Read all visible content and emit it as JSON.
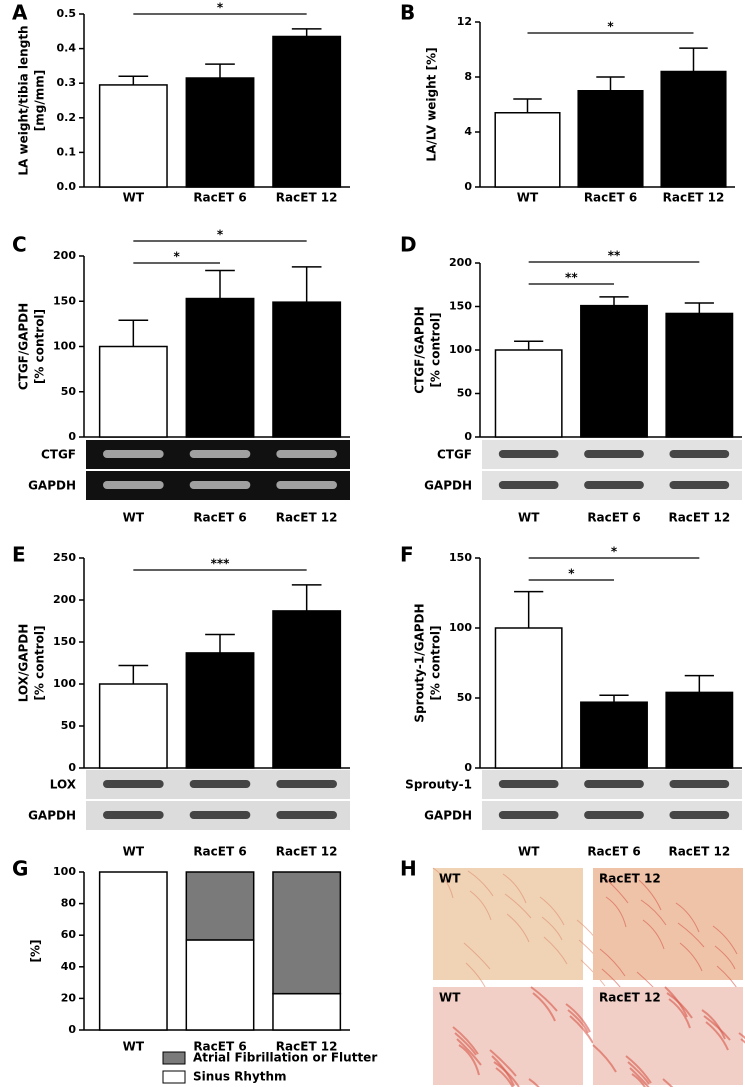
{
  "chart_data": [
    {
      "type": "bar",
      "label": "A",
      "ylabel": [
        "LA weight/tibia length",
        "[mg/mm]"
      ],
      "categories": [
        "WT",
        "RacET 6",
        "RacET 12"
      ],
      "values": [
        0.295,
        0.315,
        0.435
      ],
      "errors": [
        0.025,
        0.04,
        0.022
      ],
      "colors": [
        "#ffffff",
        "#000000",
        "#000000"
      ],
      "ylim": [
        0,
        0.5
      ],
      "yticks": [
        {
          "value": 0,
          "label": "0.0"
        },
        0.1,
        0.2,
        0.3,
        0.4,
        0.5
      ],
      "significance": [
        {
          "pair": [
            0,
            2
          ],
          "label": "*"
        }
      ]
    },
    {
      "type": "bar",
      "label": "B",
      "ylabel": [
        "LA/LV weight [%]"
      ],
      "categories": [
        "WT",
        "RacET 6",
        "RacET 12"
      ],
      "values": [
        5.4,
        7.0,
        8.4
      ],
      "errors": [
        1.0,
        1.0,
        1.7
      ],
      "colors": [
        "#ffffff",
        "#000000",
        "#000000"
      ],
      "ylim": [
        0,
        12
      ],
      "yticks": [
        0,
        4,
        8,
        12
      ],
      "significance": [
        {
          "pair": [
            0,
            2
          ],
          "label": "*"
        }
      ]
    },
    {
      "type": "bar",
      "label": "C",
      "ylabel": [
        "CTGF/GAPDH",
        "[% control]"
      ],
      "categories": [
        "WT",
        "RacET 6",
        "RacET 12"
      ],
      "values": [
        100,
        153,
        149
      ],
      "errors": [
        29,
        31,
        39
      ],
      "colors": [
        "#ffffff",
        "#000000",
        "#000000"
      ],
      "ylim": [
        0,
        200
      ],
      "yticks": [
        0,
        50,
        100,
        150,
        200
      ],
      "significance": [
        {
          "pair": [
            0,
            2
          ],
          "label": "*"
        },
        {
          "pair": [
            0,
            1
          ],
          "label": "*"
        }
      ],
      "blots": [
        "CTGF",
        "GAPDH"
      ],
      "blot_color": "#111111"
    },
    {
      "type": "bar",
      "label": "D",
      "ylabel": [
        "CTGF/GAPDH",
        "[% control]"
      ],
      "categories": [
        "WT",
        "RacET 6",
        "RacET 12"
      ],
      "values": [
        100,
        151,
        142
      ],
      "errors": [
        10,
        10,
        12
      ],
      "colors": [
        "#ffffff",
        "#000000",
        "#000000"
      ],
      "ylim": [
        0,
        200
      ],
      "yticks": [
        0,
        50,
        100,
        150,
        200
      ],
      "significance": [
        {
          "pair": [
            0,
            2
          ],
          "label": "**"
        },
        {
          "pair": [
            0,
            1
          ],
          "label": "**"
        }
      ],
      "blots": [
        "CTGF",
        "GAPDH"
      ],
      "blot_color": "#e2e2e2"
    },
    {
      "type": "bar",
      "label": "E",
      "ylabel": [
        "LOX/GAPDH",
        "[% control]"
      ],
      "categories": [
        "WT",
        "RacET 6",
        "RacET 12"
      ],
      "values": [
        100,
        137,
        187
      ],
      "errors": [
        22,
        22,
        31
      ],
      "colors": [
        "#ffffff",
        "#000000",
        "#000000"
      ],
      "ylim": [
        0,
        250
      ],
      "yticks": [
        0,
        50,
        100,
        150,
        200,
        250
      ],
      "significance": [
        {
          "pair": [
            0,
            2
          ],
          "label": "***"
        }
      ],
      "blots": [
        "LOX",
        "GAPDH"
      ],
      "blot_color": "#dcdcdc"
    },
    {
      "type": "bar",
      "label": "F",
      "ylabel": [
        "Sprouty-1/GAPDH",
        "[% control]"
      ],
      "categories": [
        "WT",
        "RacET 6",
        "RacET 12"
      ],
      "values": [
        100,
        47,
        54
      ],
      "errors": [
        26,
        5,
        12
      ],
      "colors": [
        "#ffffff",
        "#000000",
        "#000000"
      ],
      "ylim": [
        0,
        150
      ],
      "yticks": [
        0,
        50,
        100,
        150
      ],
      "significance": [
        {
          "pair": [
            0,
            2
          ],
          "label": "*"
        },
        {
          "pair": [
            0,
            1
          ],
          "label": "*"
        }
      ],
      "blots": [
        "Sprouty-1",
        "GAPDH"
      ],
      "blot_color": "#e0e0e0"
    },
    {
      "type": "stacked",
      "label": "G",
      "ylabel": [
        "[%]"
      ],
      "categories": [
        "WT",
        "RacET 6",
        "RacET 12"
      ],
      "ylim": [
        0,
        100
      ],
      "yticks": [
        0,
        20,
        40,
        60,
        80,
        100
      ],
      "series": [
        {
          "name": "Sinus Rhythm",
          "color": "#ffffff",
          "values": [
            100,
            57,
            23
          ]
        },
        {
          "name": "Atrial Fibrillation or Flutter",
          "color": "#7a7a7a",
          "values": [
            0,
            43,
            77
          ]
        }
      ]
    },
    {
      "type": "micrograph",
      "label": "H",
      "images": [
        "WT",
        "RacET 12",
        "WT",
        "RacET 12"
      ]
    }
  ]
}
